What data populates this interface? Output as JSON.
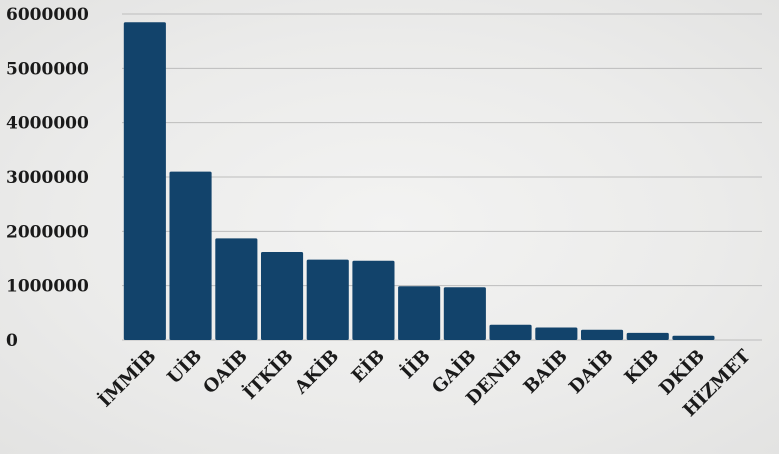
{
  "chart_data": {
    "type": "bar",
    "categories": [
      "İMMİB",
      "UİB",
      "OAİB",
      "İTKİB",
      "AKİB",
      "EİB",
      "İİB",
      "GAİB",
      "DENİB",
      "BAİB",
      "DAİB",
      "KİB",
      "DKİB",
      "HİZMET"
    ],
    "values": [
      5850000,
      3100000,
      1870000,
      1620000,
      1480000,
      1460000,
      990000,
      970000,
      280000,
      230000,
      190000,
      130000,
      80000,
      0
    ],
    "y_ticks": [
      "0",
      "1000000",
      "2000000",
      "3000000",
      "4000000",
      "5000000",
      "6000000"
    ],
    "ylim": [
      0,
      6000000
    ],
    "title": "",
    "xlabel": "",
    "ylabel": "",
    "grid": true,
    "legend": "none",
    "bar_color": "#12436b",
    "grid_color": "#bdbdbd"
  }
}
